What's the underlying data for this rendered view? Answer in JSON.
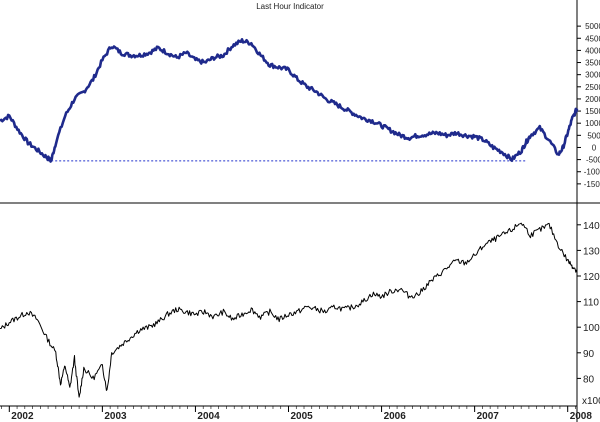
{
  "chart_data": [
    {
      "type": "line",
      "title": "Last Hour Indicator",
      "ylim": [
        -2000,
        5500
      ],
      "yticks": [
        -1500,
        -1000,
        -500,
        0,
        500,
        1000,
        1500,
        2000,
        2500,
        3000,
        3500,
        4000,
        4500,
        5000
      ],
      "series_color": "#1f2a8c",
      "x": [
        2001.9,
        2002.0,
        2002.1,
        2002.2,
        2002.3,
        2002.4,
        2002.45,
        2002.5,
        2002.6,
        2002.7,
        2002.8,
        2002.9,
        2003.0,
        2003.1,
        2003.2,
        2003.3,
        2003.4,
        2003.5,
        2003.6,
        2003.7,
        2003.8,
        2003.9,
        2004.0,
        2004.1,
        2004.2,
        2004.3,
        2004.4,
        2004.5,
        2004.6,
        2004.7,
        2004.8,
        2004.9,
        2005.0,
        2005.1,
        2005.2,
        2005.3,
        2005.4,
        2005.5,
        2005.6,
        2005.7,
        2005.8,
        2005.9,
        2006.0,
        2006.1,
        2006.2,
        2006.3,
        2006.4,
        2006.5,
        2006.6,
        2006.7,
        2006.8,
        2006.9,
        2007.0,
        2007.1,
        2007.2,
        2007.3,
        2007.4,
        2007.5,
        2007.55,
        2007.6,
        2007.7,
        2007.8,
        2007.9,
        2007.95,
        2008.0,
        2008.05,
        2008.1
      ],
      "values": [
        1100,
        1300,
        700,
        200,
        -100,
        -400,
        -550,
        200,
        1300,
        2000,
        2300,
        2800,
        3600,
        4200,
        3900,
        3800,
        3800,
        3900,
        4100,
        3900,
        3700,
        3900,
        3600,
        3500,
        3700,
        3800,
        4200,
        4400,
        4300,
        3800,
        3400,
        3300,
        3200,
        2800,
        2500,
        2300,
        2000,
        1800,
        1600,
        1400,
        1200,
        1100,
        900,
        700,
        500,
        400,
        500,
        550,
        600,
        500,
        600,
        500,
        450,
        300,
        0,
        -200,
        -500,
        -150,
        200,
        500,
        800,
        300,
        -300,
        0,
        600,
        1200,
        1600
      ],
      "reference_line": {
        "value": -550,
        "from": 2002.45,
        "to": 2007.55,
        "color": "#2233cc"
      }
    },
    {
      "type": "line",
      "ylim": [
        70,
        145
      ],
      "yticks": [
        80,
        90,
        100,
        110,
        120,
        130,
        140
      ],
      "y_multiplier_label": "x100",
      "series_color": "#000000",
      "x": [
        2001.9,
        2002.0,
        2002.1,
        2002.2,
        2002.3,
        2002.4,
        2002.5,
        2002.55,
        2002.6,
        2002.65,
        2002.7,
        2002.75,
        2002.8,
        2002.9,
        2003.0,
        2003.05,
        2003.1,
        2003.2,
        2003.3,
        2003.4,
        2003.5,
        2003.6,
        2003.7,
        2003.8,
        2003.9,
        2004.0,
        2004.1,
        2004.2,
        2004.3,
        2004.4,
        2004.5,
        2004.6,
        2004.7,
        2004.8,
        2004.9,
        2005.0,
        2005.1,
        2005.2,
        2005.3,
        2005.4,
        2005.5,
        2005.6,
        2005.7,
        2005.8,
        2005.9,
        2006.0,
        2006.1,
        2006.2,
        2006.3,
        2006.4,
        2006.5,
        2006.6,
        2006.7,
        2006.8,
        2006.9,
        2007.0,
        2007.1,
        2007.2,
        2007.3,
        2007.4,
        2007.5,
        2007.6,
        2007.7,
        2007.8,
        2007.9,
        2008.0,
        2008.05,
        2008.1
      ],
      "values": [
        99,
        102,
        104,
        106,
        103,
        96,
        90,
        78,
        85,
        76,
        88,
        72,
        84,
        80,
        85,
        75,
        90,
        93,
        96,
        99,
        100,
        102,
        105,
        107,
        106,
        105,
        106,
        104,
        106,
        103,
        105,
        107,
        104,
        106,
        103,
        105,
        106,
        108,
        107,
        106,
        108,
        107,
        108,
        110,
        113,
        112,
        114,
        115,
        112,
        113,
        117,
        120,
        123,
        126,
        125,
        128,
        132,
        134,
        136,
        138,
        141,
        136,
        138,
        140,
        132,
        126,
        124,
        122
      ]
    }
  ],
  "x_axis": {
    "ticks": [
      "2002",
      "2003",
      "2004",
      "2005",
      "2006",
      "2007",
      "2008"
    ],
    "range": [
      2001.9,
      2008.1
    ]
  }
}
